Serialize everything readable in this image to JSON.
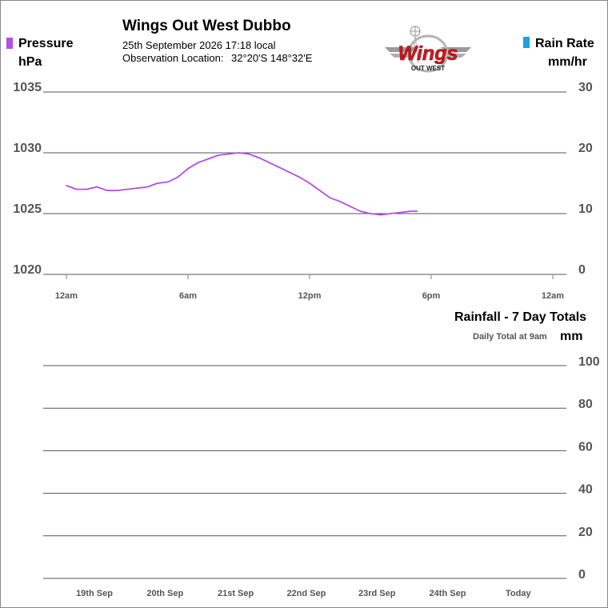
{
  "header": {
    "title": "Wings Out West Dubbo",
    "datetime": "25th September 2026  17:18 local",
    "location_label": "Observation Location:",
    "location_value": "32°20'S 148°32'E",
    "logo_text": "Wings",
    "logo_subtext": "OUT WEST"
  },
  "legend": {
    "pressure_label": "Pressure",
    "pressure_unit": "hPa",
    "pressure_color": "#b44ee6",
    "rain_rate_label": "Rain Rate",
    "rain_rate_unit": "mm/hr",
    "rain_rate_color": "#1aa3e0"
  },
  "rainfall": {
    "title": "Rainfall - 7 Day Totals",
    "note": "Daily Total at 9am",
    "unit": "mm"
  },
  "chart_data": [
    {
      "type": "line",
      "series": [
        {
          "name": "Pressure",
          "color": "#b44ee6",
          "x_hours": [
            0,
            0.5,
            1,
            1.5,
            2,
            2.5,
            3,
            3.5,
            4,
            4.5,
            5,
            5.5,
            6,
            6.5,
            7,
            7.5,
            8,
            8.5,
            9,
            9.5,
            10,
            10.5,
            11,
            11.5,
            12,
            12.5,
            13,
            13.5,
            14,
            14.5,
            15,
            15.5,
            16,
            16.5,
            17,
            17.3
          ],
          "values": [
            1027.3,
            1027.0,
            1027.0,
            1027.2,
            1026.9,
            1026.9,
            1027.0,
            1027.1,
            1027.2,
            1027.5,
            1027.6,
            1028.0,
            1028.7,
            1029.2,
            1029.5,
            1029.8,
            1029.9,
            1030.0,
            1029.9,
            1029.6,
            1029.2,
            1028.8,
            1028.4,
            1028.0,
            1027.5,
            1026.9,
            1026.3,
            1026.0,
            1025.6,
            1025.2,
            1025.0,
            1024.9,
            1025.0,
            1025.1,
            1025.2,
            1025.2
          ]
        }
      ],
      "y_left": {
        "ticks": [
          1020,
          1025,
          1030,
          1035
        ],
        "ylim": [
          1020,
          1035
        ]
      },
      "y_right": {
        "ticks": [
          0,
          10,
          20,
          30
        ],
        "ylim": [
          0,
          30
        ]
      },
      "x_ticks": [
        "12am",
        "6am",
        "12pm",
        "6pm",
        "12am"
      ],
      "xlim_hours": [
        0,
        24
      ],
      "grid": true
    },
    {
      "type": "bar",
      "title": "Rainfall - 7 Day Totals",
      "categories": [
        "19th Sep",
        "20th Sep",
        "21st Sep",
        "22nd Sep",
        "23rd Sep",
        "24th Sep",
        "Today"
      ],
      "values": [
        0,
        0,
        0,
        0,
        0,
        0,
        0
      ],
      "ylabel": "mm",
      "ylim": [
        0,
        100
      ],
      "y_ticks": [
        0,
        20,
        40,
        60,
        80,
        100
      ],
      "grid": true
    }
  ]
}
